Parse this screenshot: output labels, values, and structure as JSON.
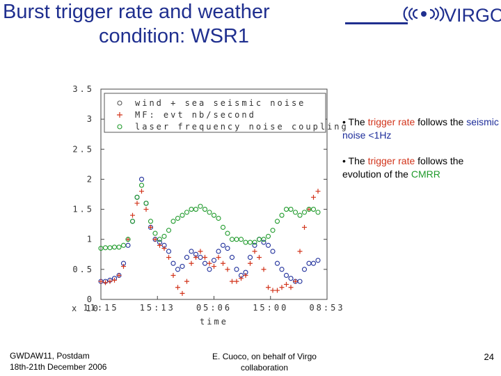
{
  "slide": {
    "title_line1": "Burst trigger rate and weather",
    "title_line2": "condition: WSR1",
    "logo_text": "VIRGO",
    "bullet1": {
      "pre": "• The ",
      "hl1": "trigger rate",
      "mid": " follows the ",
      "hl2": "seismic noise <1Hz"
    },
    "bullet2": {
      "pre": "• The ",
      "hl1": "trigger rate",
      "mid": " follows the evolution of the ",
      "hl2": "CMRR"
    },
    "footer_left_1": "GWDAW11, Postdam",
    "footer_left_2": "18th-21th December 2006",
    "footer_mid_1": "E. Cuoco, on behalf of Virgo",
    "footer_mid_2": "collaboration",
    "page_number": "24",
    "colors": {
      "title": "#1f2f8f",
      "red": "#d2341b",
      "blue": "#1d2d9a",
      "green": "#1f9a2b"
    }
  },
  "chart_data": {
    "type": "scatter",
    "xlabel": "time",
    "x_tick_labels": [
      "11:15",
      "15:13",
      "05:06",
      "15:00",
      "08:53"
    ],
    "y_tick_labels": [
      "0",
      "0.5",
      "1",
      "1.5",
      "2",
      "2.5",
      "3",
      "3.5"
    ],
    "ylim": [
      0,
      3.5
    ],
    "xlim": [
      0,
      100
    ],
    "x_overlap_text": "x 10",
    "legend": {
      "placement": "top"
    },
    "series": [
      {
        "name": "wind + sea seismic noise",
        "marker": "circle",
        "color": "#1d2d9a",
        "x": [
          0,
          2,
          4,
          6,
          8,
          10,
          12,
          14,
          16,
          18,
          20,
          22,
          24,
          26,
          28,
          30,
          32,
          34,
          36,
          38,
          40,
          42,
          44,
          46,
          48,
          50,
          52,
          54,
          56,
          58,
          60,
          62,
          64,
          66,
          68,
          70,
          72,
          74,
          76,
          78,
          80,
          82,
          84,
          86,
          88,
          90,
          92,
          94,
          96
        ],
        "y": [
          0.3,
          0.3,
          0.32,
          0.35,
          0.4,
          0.6,
          0.9,
          1.3,
          1.7,
          2.0,
          1.6,
          1.2,
          1.0,
          0.95,
          0.9,
          0.8,
          0.6,
          0.5,
          0.55,
          0.7,
          0.8,
          0.75,
          0.7,
          0.6,
          0.5,
          0.65,
          0.8,
          0.9,
          0.85,
          0.7,
          0.5,
          0.4,
          0.45,
          0.7,
          0.9,
          1.0,
          0.95,
          0.9,
          0.8,
          0.6,
          0.5,
          0.4,
          0.35,
          0.3,
          0.3,
          0.5,
          0.6,
          0.6,
          0.65
        ]
      },
      {
        "name": "MF: evt nb/second",
        "marker": "plus",
        "color": "#d2341b",
        "x": [
          0,
          2,
          4,
          6,
          8,
          10,
          12,
          14,
          16,
          18,
          20,
          22,
          24,
          26,
          28,
          30,
          32,
          34,
          36,
          38,
          40,
          42,
          44,
          46,
          48,
          50,
          52,
          54,
          56,
          58,
          60,
          62,
          64,
          66,
          68,
          70,
          72,
          74,
          76,
          78,
          80,
          82,
          84,
          86,
          88,
          90,
          92,
          94,
          96
        ],
        "y": [
          0.3,
          0.28,
          0.3,
          0.32,
          0.4,
          0.55,
          1.0,
          1.4,
          1.6,
          1.8,
          1.5,
          1.2,
          1.0,
          0.9,
          0.85,
          0.7,
          0.4,
          0.2,
          0.1,
          0.3,
          0.6,
          0.7,
          0.8,
          0.7,
          0.6,
          0.55,
          0.7,
          0.6,
          0.5,
          0.3,
          0.3,
          0.35,
          0.4,
          0.6,
          0.8,
          0.7,
          0.5,
          0.2,
          0.15,
          0.15,
          0.2,
          0.25,
          0.2,
          0.3,
          0.8,
          1.2,
          1.5,
          1.7,
          1.8
        ]
      },
      {
        "name": "laser frequency noise coupling",
        "marker": "circle",
        "color": "#1f9a2b",
        "x": [
          0,
          2,
          4,
          6,
          8,
          10,
          12,
          14,
          16,
          18,
          20,
          22,
          24,
          26,
          28,
          30,
          32,
          34,
          36,
          38,
          40,
          42,
          44,
          46,
          48,
          50,
          52,
          54,
          56,
          58,
          60,
          62,
          64,
          66,
          68,
          70,
          72,
          74,
          76,
          78,
          80,
          82,
          84,
          86,
          88,
          90,
          92,
          94,
          96
        ],
        "y": [
          0.85,
          0.86,
          0.86,
          0.87,
          0.87,
          0.9,
          1.0,
          1.3,
          1.7,
          1.9,
          1.6,
          1.3,
          1.1,
          1.0,
          1.05,
          1.15,
          1.3,
          1.35,
          1.4,
          1.45,
          1.5,
          1.5,
          1.55,
          1.5,
          1.45,
          1.4,
          1.35,
          1.2,
          1.1,
          1.0,
          1.0,
          1.0,
          0.95,
          0.95,
          0.95,
          1.0,
          1.0,
          1.05,
          1.15,
          1.3,
          1.4,
          1.5,
          1.5,
          1.45,
          1.4,
          1.45,
          1.5,
          1.5,
          1.45
        ]
      }
    ]
  }
}
